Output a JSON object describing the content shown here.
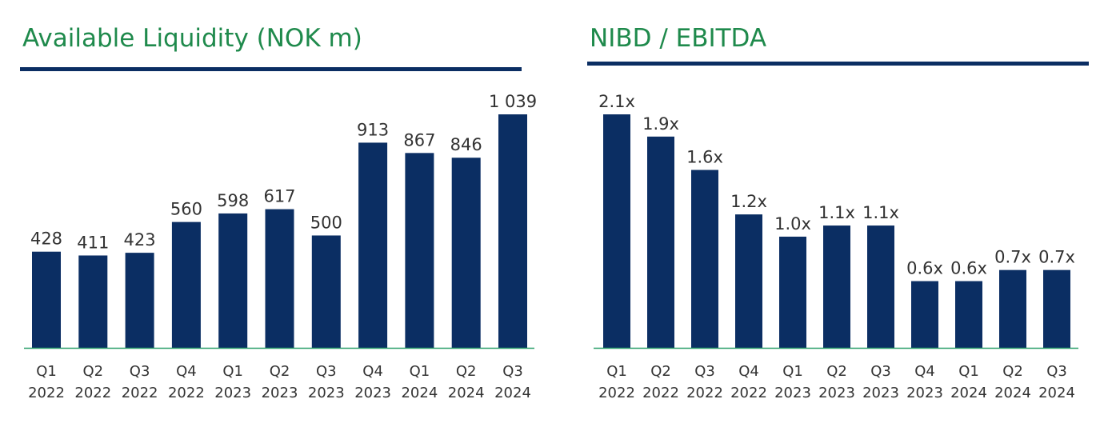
{
  "colors": {
    "bar": "#0b2e63",
    "title": "#1f8a4c",
    "baseline": "#2aa06a",
    "rule": "#0b2e63",
    "text": "#333333"
  },
  "chart_data": [
    {
      "type": "bar",
      "title": "Available Liquidity (NOK m)",
      "categories": [
        [
          "Q1",
          "2022"
        ],
        [
          "Q2",
          "2022"
        ],
        [
          "Q3",
          "2022"
        ],
        [
          "Q4",
          "2022"
        ],
        [
          "Q1",
          "2023"
        ],
        [
          "Q2",
          "2023"
        ],
        [
          "Q3",
          "2023"
        ],
        [
          "Q4",
          "2023"
        ],
        [
          "Q1",
          "2024"
        ],
        [
          "Q2",
          "2024"
        ],
        [
          "Q3",
          "2024"
        ]
      ],
      "values": [
        428,
        411,
        423,
        560,
        598,
        617,
        500,
        913,
        867,
        846,
        1039
      ],
      "value_labels": [
        "428",
        "411",
        "423",
        "560",
        "598",
        "617",
        "500",
        "913",
        "867",
        "846",
        "1 039"
      ],
      "ylim": [
        0,
        1100
      ],
      "grid": false
    },
    {
      "type": "bar",
      "title": "NIBD / EBITDA",
      "categories": [
        [
          "Q1",
          "2022"
        ],
        [
          "Q2",
          "2022"
        ],
        [
          "Q3",
          "2022"
        ],
        [
          "Q4",
          "2022"
        ],
        [
          "Q1",
          "2023"
        ],
        [
          "Q2",
          "2023"
        ],
        [
          "Q3",
          "2023"
        ],
        [
          "Q4",
          "2023"
        ],
        [
          "Q1",
          "2024"
        ],
        [
          "Q2",
          "2024"
        ],
        [
          "Q3",
          "2024"
        ]
      ],
      "values": [
        2.1,
        1.9,
        1.6,
        1.2,
        1.0,
        1.1,
        1.1,
        0.6,
        0.6,
        0.7,
        0.7
      ],
      "value_labels": [
        "2.1x",
        "1.9x",
        "1.6x",
        "1.2x",
        "1.0x",
        "1.1x",
        "1.1x",
        "0.6x",
        "0.6x",
        "0.7x",
        "0.7x"
      ],
      "ylim": [
        0,
        2.3
      ],
      "grid": false
    }
  ]
}
